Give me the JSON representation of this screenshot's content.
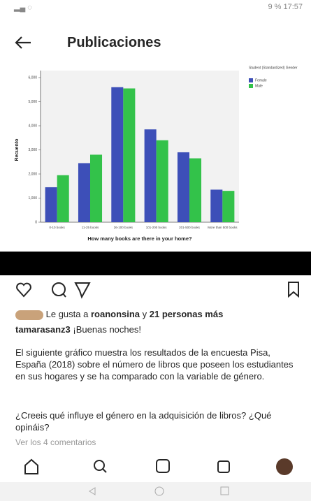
{
  "status": {
    "battery": "9 %",
    "time": "17:57"
  },
  "header": {
    "title": "Publicaciones"
  },
  "chart_data": {
    "type": "bar",
    "y_label": "Recuento",
    "x_label": "How many books are there in your home?",
    "legend_title": "Student (Standardized) Gender",
    "categories": [
      "0-10 books",
      "11-25 books",
      "26-100 books",
      "101-200 books",
      "201-500 books",
      "More than 500 books"
    ],
    "series": [
      {
        "name": "Female",
        "color": "#3d4fb8",
        "values": [
          1450,
          2450,
          5600,
          3850,
          2900,
          1350
        ]
      },
      {
        "name": "Male",
        "color": "#33c24a",
        "values": [
          1950,
          2800,
          5550,
          3400,
          2650,
          1300
        ]
      }
    ],
    "ylim": [
      0,
      6000
    ],
    "yticks": [
      0,
      {
        "value": 1000,
        "label": "1,000"
      },
      {
        "value": 2000,
        "label": "2,000"
      },
      {
        "value": 3000,
        "label": "3,000"
      },
      {
        "value": 4000,
        "label": "4,000"
      },
      {
        "value": 5000,
        "label": "5,000"
      },
      {
        "value": 6000,
        "label": "6,000"
      }
    ]
  },
  "post": {
    "likes_prefix": "Le gusta a",
    "liker": "roanonsina",
    "likes_join": "y",
    "likes_others": "21 personas más",
    "user": "tamarasanz3",
    "greeting": "¡Buenas noches!",
    "paragraph": "El siguiente gráfico muestra los resultados de la encuesta Pisa, España (2018) sobre el número de libros que poseen los estudiantes en sus hogares y se ha comparado con la variable de género.",
    "question1": "¿Creeis qué influye el género en la adquisición de libros?",
    "question2": "¿Qué opináis?",
    "comments": "Ver los 4 comentarios"
  }
}
